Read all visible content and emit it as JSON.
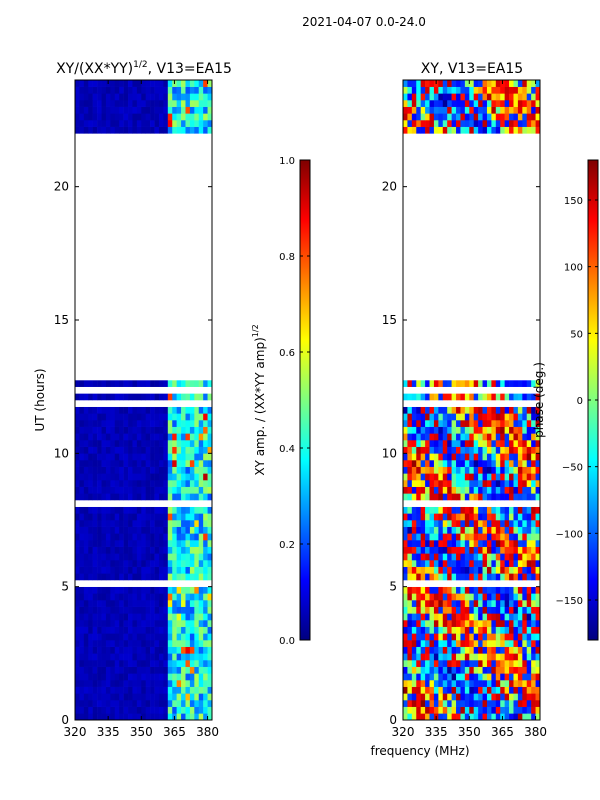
{
  "suptitle": "2021-04-07 0.0-24.0",
  "xlabel": "frequency (MHz)",
  "colors": {
    "jet": [
      "#00007f",
      "#0000ff",
      "#007fff",
      "#00ffff",
      "#7fff7f",
      "#ffff00",
      "#ff7f00",
      "#ff0000",
      "#7f0000"
    ],
    "gap": "#ffffff",
    "frame": "#000000"
  },
  "chart_data": [
    {
      "type": "heatmap",
      "title_main": "XY/(XX*YY)",
      "title_sup": "1/2",
      "title_tail": ", V13=EA15",
      "ylabel": "UT (hours)",
      "xlim": [
        320,
        382
      ],
      "ylim": [
        0,
        24
      ],
      "xticks": [
        320,
        335,
        350,
        365,
        380
      ],
      "yticks": [
        0,
        5,
        10,
        15,
        20
      ],
      "colorbar": {
        "label_main": "XY amp. / (XX*YY amp)",
        "label_sup": "1/2",
        "range": [
          0.0,
          1.0
        ],
        "ticks": [
          0.0,
          0.2,
          0.4,
          0.6,
          0.8,
          1.0
        ],
        "tick_labels": [
          "0.0",
          "0.2",
          "0.4",
          "0.6",
          "0.8",
          "1.0"
        ]
      },
      "no_data_ut": [
        [
          12.85,
          22.0
        ]
      ],
      "active_band_mhz": [
        362,
        382
      ],
      "typical_value_outside_band": 0.05,
      "typical_value_in_band": 0.35
    },
    {
      "type": "heatmap",
      "title_main": "XY, V13=EA15",
      "title_sup": "",
      "title_tail": "",
      "ylabel": "",
      "xlim": [
        320,
        382
      ],
      "ylim": [
        0,
        24
      ],
      "xticks": [
        320,
        335,
        350,
        365,
        380
      ],
      "yticks": [
        0,
        5,
        10,
        15,
        20
      ],
      "colorbar": {
        "label_main": "phase (deg.)",
        "label_sup": "",
        "range": [
          -180,
          180
        ],
        "ticks": [
          -150,
          -100,
          -50,
          0,
          50,
          100,
          150
        ],
        "tick_labels": [
          "−150",
          "−100",
          "−50",
          "0",
          "50",
          "100",
          "150"
        ]
      },
      "no_data_ut": [
        [
          12.85,
          22.0
        ]
      ],
      "value_range": [
        -180,
        180
      ]
    }
  ]
}
